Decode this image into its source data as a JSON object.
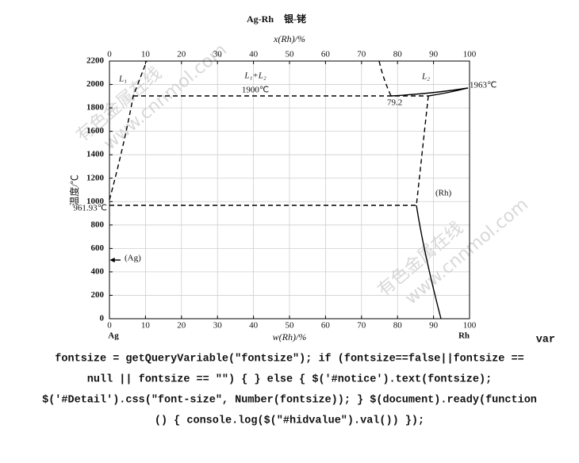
{
  "diagram": {
    "title": "Ag-Rh",
    "title_cn": "银-铑",
    "xlim": [
      0,
      100
    ],
    "ylim": [
      0,
      2200
    ],
    "top_axis": {
      "label": "x(Rh)/%",
      "ticks": [
        0,
        10,
        20,
        30,
        40,
        50,
        60,
        70,
        80,
        90,
        100
      ]
    },
    "bottom_axis": {
      "label": "w(Rh)/%",
      "ticks": [
        0,
        10,
        20,
        30,
        40,
        50,
        60,
        70,
        80,
        90,
        100
      ]
    },
    "left_axis": {
      "label": "温度/℃",
      "ticks": [
        0,
        200,
        400,
        600,
        800,
        1000,
        1200,
        1400,
        1600,
        1800,
        2000,
        2200
      ]
    },
    "end_left": "Ag",
    "end_right": "Rh",
    "annotations": {
      "l1": "L₁",
      "l1l2": "L₁+L₂",
      "t1900": "1900℃",
      "l2": "L₂",
      "t1963": "1963℃",
      "c792": "79.2",
      "rh": "(Rh)",
      "ag": "(Ag)",
      "t961": "961.93℃"
    },
    "watermark": {
      "name": "有色金属在线",
      "url": "www.cnnmol.com"
    }
  },
  "code": {
    "lines": [
      "var",
      "fontsize = getQueryVariable(\"fontsize\"); if (fontsize==false||fontsize ==",
      "null || fontsize == \"\") { } else { $('#notice').text(fontsize);",
      "$('#Detail').css(\"font-size\", Number(fontsize)); } $(document).ready(function",
      "() { console.log($(\"#hidvalue\").val()) });"
    ]
  }
}
